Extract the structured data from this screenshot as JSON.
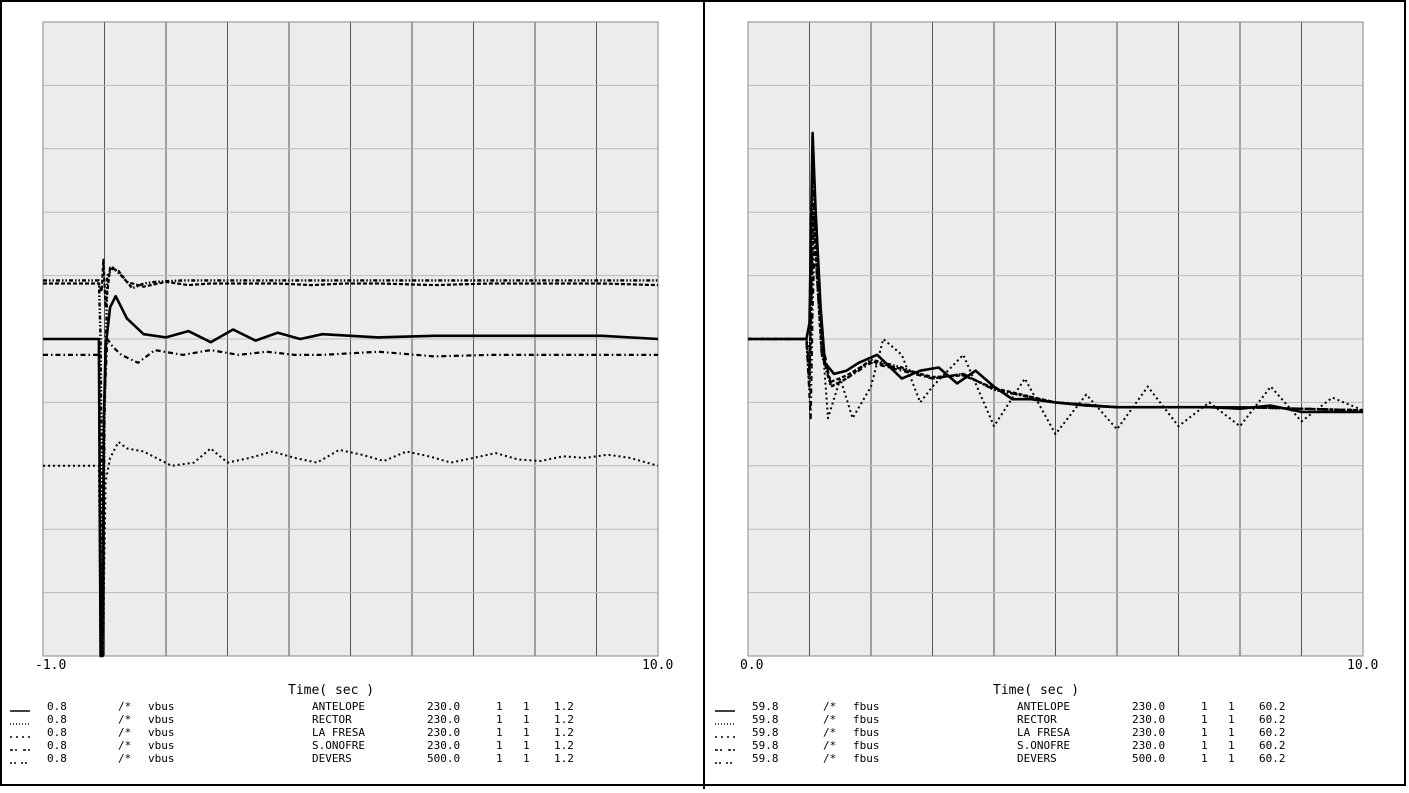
{
  "chart_data": [
    {
      "type": "line",
      "xlabel": "Time( sec )",
      "xlim": [
        -1.0,
        10.0
      ],
      "x_tick_labels": [
        "-1.0",
        "10.0"
      ],
      "ylim": [
        0.8,
        1.2
      ],
      "grid": true,
      "legend_placement": "bottom",
      "series": [
        {
          "name": "ANTELOPE",
          "style": "solid",
          "min": "0.8",
          "comment": "/*",
          "variable": "vbus",
          "kv": "230.0",
          "id1": "1",
          "id2": "1",
          "max": "1.2",
          "x": [
            -1.0,
            0.0,
            0.03,
            0.06,
            0.09,
            0.12,
            0.2,
            0.3,
            0.5,
            0.8,
            1.2,
            1.6,
            2.0,
            2.4,
            2.8,
            3.2,
            3.6,
            4.0,
            5.0,
            6.0,
            7.0,
            8.0,
            9.0,
            10.0
          ],
          "y": [
            1.0,
            1.0,
            0.8,
            0.8,
            0.95,
            0.995,
            1.02,
            1.027,
            1.013,
            1.003,
            1.001,
            1.005,
            0.998,
            1.006,
            0.999,
            1.004,
            1.0,
            1.003,
            1.001,
            1.002,
            1.002,
            1.002,
            1.002,
            1.0
          ]
        },
        {
          "name": "RECTOR",
          "style": "dotted",
          "min": "0.8",
          "comment": "/*",
          "variable": "vbus",
          "kv": "230.0",
          "id1": "1",
          "id2": "1",
          "max": "1.2",
          "x": [
            -1.0,
            0.0,
            0.03,
            0.07,
            0.12,
            0.2,
            0.35,
            0.5,
            0.8,
            1.3,
            1.7,
            2.0,
            2.3,
            2.7,
            3.1,
            3.5,
            3.9,
            4.3,
            4.7,
            5.1,
            5.5,
            5.9,
            6.3,
            6.7,
            7.1,
            7.5,
            7.9,
            8.3,
            8.7,
            9.1,
            9.5,
            10.0
          ],
          "y": [
            0.92,
            0.92,
            0.8,
            0.8,
            0.91,
            0.925,
            0.935,
            0.931,
            0.929,
            0.92,
            0.922,
            0.931,
            0.922,
            0.925,
            0.929,
            0.925,
            0.922,
            0.93,
            0.927,
            0.923,
            0.929,
            0.926,
            0.922,
            0.925,
            0.928,
            0.924,
            0.923,
            0.926,
            0.925,
            0.927,
            0.925,
            0.92
          ]
        },
        {
          "name": "LA FRESA",
          "style": "dash-dot",
          "min": "0.8",
          "comment": "/*",
          "variable": "vbus",
          "kv": "230.0",
          "id1": "1",
          "id2": "1",
          "max": "1.2",
          "x": [
            -1.0,
            0.0,
            0.03,
            0.06,
            0.1,
            0.15,
            0.25,
            0.4,
            0.7,
            1.0,
            1.5,
            2.0,
            2.5,
            3.0,
            3.5,
            4.0,
            5.0,
            6.0,
            7.0,
            8.0,
            9.0,
            10.0
          ],
          "y": [
            0.99,
            0.99,
            0.8,
            0.8,
            0.96,
            1.0,
            0.995,
            0.99,
            0.985,
            0.993,
            0.99,
            0.993,
            0.99,
            0.992,
            0.99,
            0.99,
            0.992,
            0.989,
            0.99,
            0.99,
            0.99,
            0.99
          ]
        },
        {
          "name": "S.ONOFRE",
          "style": "dash-dot-dot",
          "min": "0.8",
          "comment": "/*",
          "variable": "vbus",
          "kv": "230.0",
          "id1": "1",
          "id2": "1",
          "max": "1.2",
          "x": [
            -1.0,
            0.0,
            0.03,
            0.07,
            0.1,
            0.15,
            0.25,
            0.4,
            0.6,
            0.8,
            1.0,
            1.5,
            2.0,
            3.0,
            4.0,
            5.0,
            6.0,
            7.0,
            8.0,
            9.0,
            10.0
          ],
          "y": [
            1.037,
            1.037,
            1.0,
            0.8,
            0.95,
            1.04,
            1.045,
            1.04,
            1.032,
            1.035,
            1.036,
            1.037,
            1.037,
            1.037,
            1.037,
            1.037,
            1.037,
            1.037,
            1.037,
            1.037,
            1.037
          ]
        },
        {
          "name": "DEVERS",
          "style": "dash-dash",
          "min": "0.8",
          "comment": "/*",
          "variable": "vbus",
          "kv": "500.0",
          "id1": "1",
          "id2": "1",
          "max": "1.2",
          "x": [
            -1.0,
            0.0,
            0.05,
            0.08,
            0.12,
            0.2,
            0.35,
            0.5,
            0.8,
            1.2,
            1.6,
            2.0,
            2.6,
            3.2,
            3.8,
            4.4,
            5.0,
            6.0,
            7.0,
            8.0,
            9.0,
            10.0
          ],
          "y": [
            1.035,
            1.035,
            1.03,
            1.05,
            1.02,
            1.045,
            1.043,
            1.036,
            1.033,
            1.036,
            1.034,
            1.035,
            1.035,
            1.035,
            1.034,
            1.035,
            1.035,
            1.034,
            1.035,
            1.035,
            1.035,
            1.034
          ]
        }
      ]
    },
    {
      "type": "line",
      "xlabel": "Time( sec )",
      "xlim": [
        0.0,
        10.0
      ],
      "x_tick_labels": [
        "0.0",
        "10.0"
      ],
      "ylim": [
        59.8,
        60.2
      ],
      "grid": true,
      "legend_placement": "bottom",
      "series": [
        {
          "name": "ANTELOPE",
          "style": "solid",
          "min": "59.8",
          "comment": "/*",
          "variable": "fbus",
          "kv": "230.0",
          "id1": "1",
          "id2": "1",
          "max": "60.2",
          "x": [
            0.0,
            0.95,
            1.0,
            1.05,
            1.1,
            1.18,
            1.25,
            1.4,
            1.6,
            1.8,
            2.1,
            2.5,
            2.8,
            3.1,
            3.4,
            3.7,
            4.0,
            4.3,
            4.6,
            5.0,
            5.5,
            6.0,
            7.0,
            7.5,
            8.0,
            8.5,
            9.0,
            9.5,
            10.0
          ],
          "y": [
            60.0,
            60.0,
            60.01,
            60.13,
            60.08,
            60.02,
            59.985,
            59.978,
            59.98,
            59.985,
            59.99,
            59.975,
            59.98,
            59.982,
            59.972,
            59.98,
            59.97,
            59.962,
            59.962,
            59.96,
            59.958,
            59.957,
            59.957,
            59.957,
            59.956,
            59.958,
            59.954,
            59.954,
            59.954
          ]
        },
        {
          "name": "RECTOR",
          "style": "dotted",
          "min": "59.8",
          "comment": "/*",
          "variable": "fbus",
          "kv": "230.0",
          "id1": "1",
          "id2": "1",
          "max": "60.2",
          "x": [
            0.0,
            0.95,
            1.02,
            1.08,
            1.15,
            1.3,
            1.5,
            1.7,
            2.0,
            2.2,
            2.5,
            2.8,
            3.0,
            3.5,
            4.0,
            4.5,
            5.0,
            5.5,
            6.0,
            6.5,
            7.0,
            7.5,
            8.0,
            8.5,
            9.0,
            9.5,
            10.0
          ],
          "y": [
            60.0,
            60.0,
            59.99,
            60.09,
            60.03,
            59.95,
            59.975,
            59.95,
            59.97,
            60.0,
            59.99,
            59.96,
            59.97,
            59.99,
            59.945,
            59.975,
            59.94,
            59.965,
            59.943,
            59.97,
            59.945,
            59.96,
            59.945,
            59.97,
            59.948,
            59.963,
            59.955
          ]
        },
        {
          "name": "LA FRESA",
          "style": "dash-dot",
          "min": "59.8",
          "comment": "/*",
          "variable": "fbus",
          "kv": "230.0",
          "id1": "1",
          "id2": "1",
          "max": "60.2",
          "x": [
            0.0,
            0.95,
            1.02,
            1.05,
            1.1,
            1.2,
            1.35,
            1.6,
            2.0,
            2.5,
            3.0,
            3.5,
            4.0,
            5.0,
            6.0,
            7.0,
            8.0,
            9.0,
            10.0
          ],
          "y": [
            60.0,
            60.0,
            59.95,
            60.02,
            60.08,
            60.0,
            59.97,
            59.975,
            59.985,
            59.98,
            59.975,
            59.978,
            59.968,
            59.96,
            59.957,
            59.957,
            59.957,
            59.956,
            59.955
          ]
        },
        {
          "name": "S.ONOFRE",
          "style": "dash-dot-dot",
          "min": "59.8",
          "comment": "/*",
          "variable": "fbus",
          "kv": "230.0",
          "id1": "1",
          "id2": "1",
          "max": "60.2",
          "x": [
            0.0,
            0.95,
            1.0,
            1.06,
            1.12,
            1.2,
            1.35,
            1.6,
            2.0,
            2.5,
            3.0,
            3.5,
            4.0,
            5.0,
            6.0,
            7.0,
            8.0,
            9.0,
            10.0
          ],
          "y": [
            60.0,
            60.0,
            59.97,
            60.1,
            60.04,
            59.99,
            59.97,
            59.975,
            59.987,
            59.982,
            59.975,
            59.978,
            59.968,
            59.96,
            59.957,
            59.957,
            59.957,
            59.956,
            59.955
          ]
        },
        {
          "name": "DEVERS",
          "style": "dash-dash",
          "min": "59.8",
          "comment": "/*",
          "variable": "fbus",
          "kv": "500.0",
          "id1": "1",
          "id2": "1",
          "max": "60.2",
          "x": [
            0.0,
            0.95,
            1.0,
            1.06,
            1.12,
            1.2,
            1.35,
            1.6,
            2.0,
            2.5,
            3.0,
            3.5,
            4.0,
            5.0,
            6.0,
            7.0,
            8.0,
            9.0,
            10.0
          ],
          "y": [
            60.0,
            60.0,
            59.98,
            60.08,
            60.04,
            59.99,
            59.973,
            59.977,
            59.986,
            59.981,
            59.976,
            59.977,
            59.969,
            59.96,
            59.957,
            59.957,
            59.957,
            59.956,
            59.955
          ]
        }
      ]
    }
  ]
}
